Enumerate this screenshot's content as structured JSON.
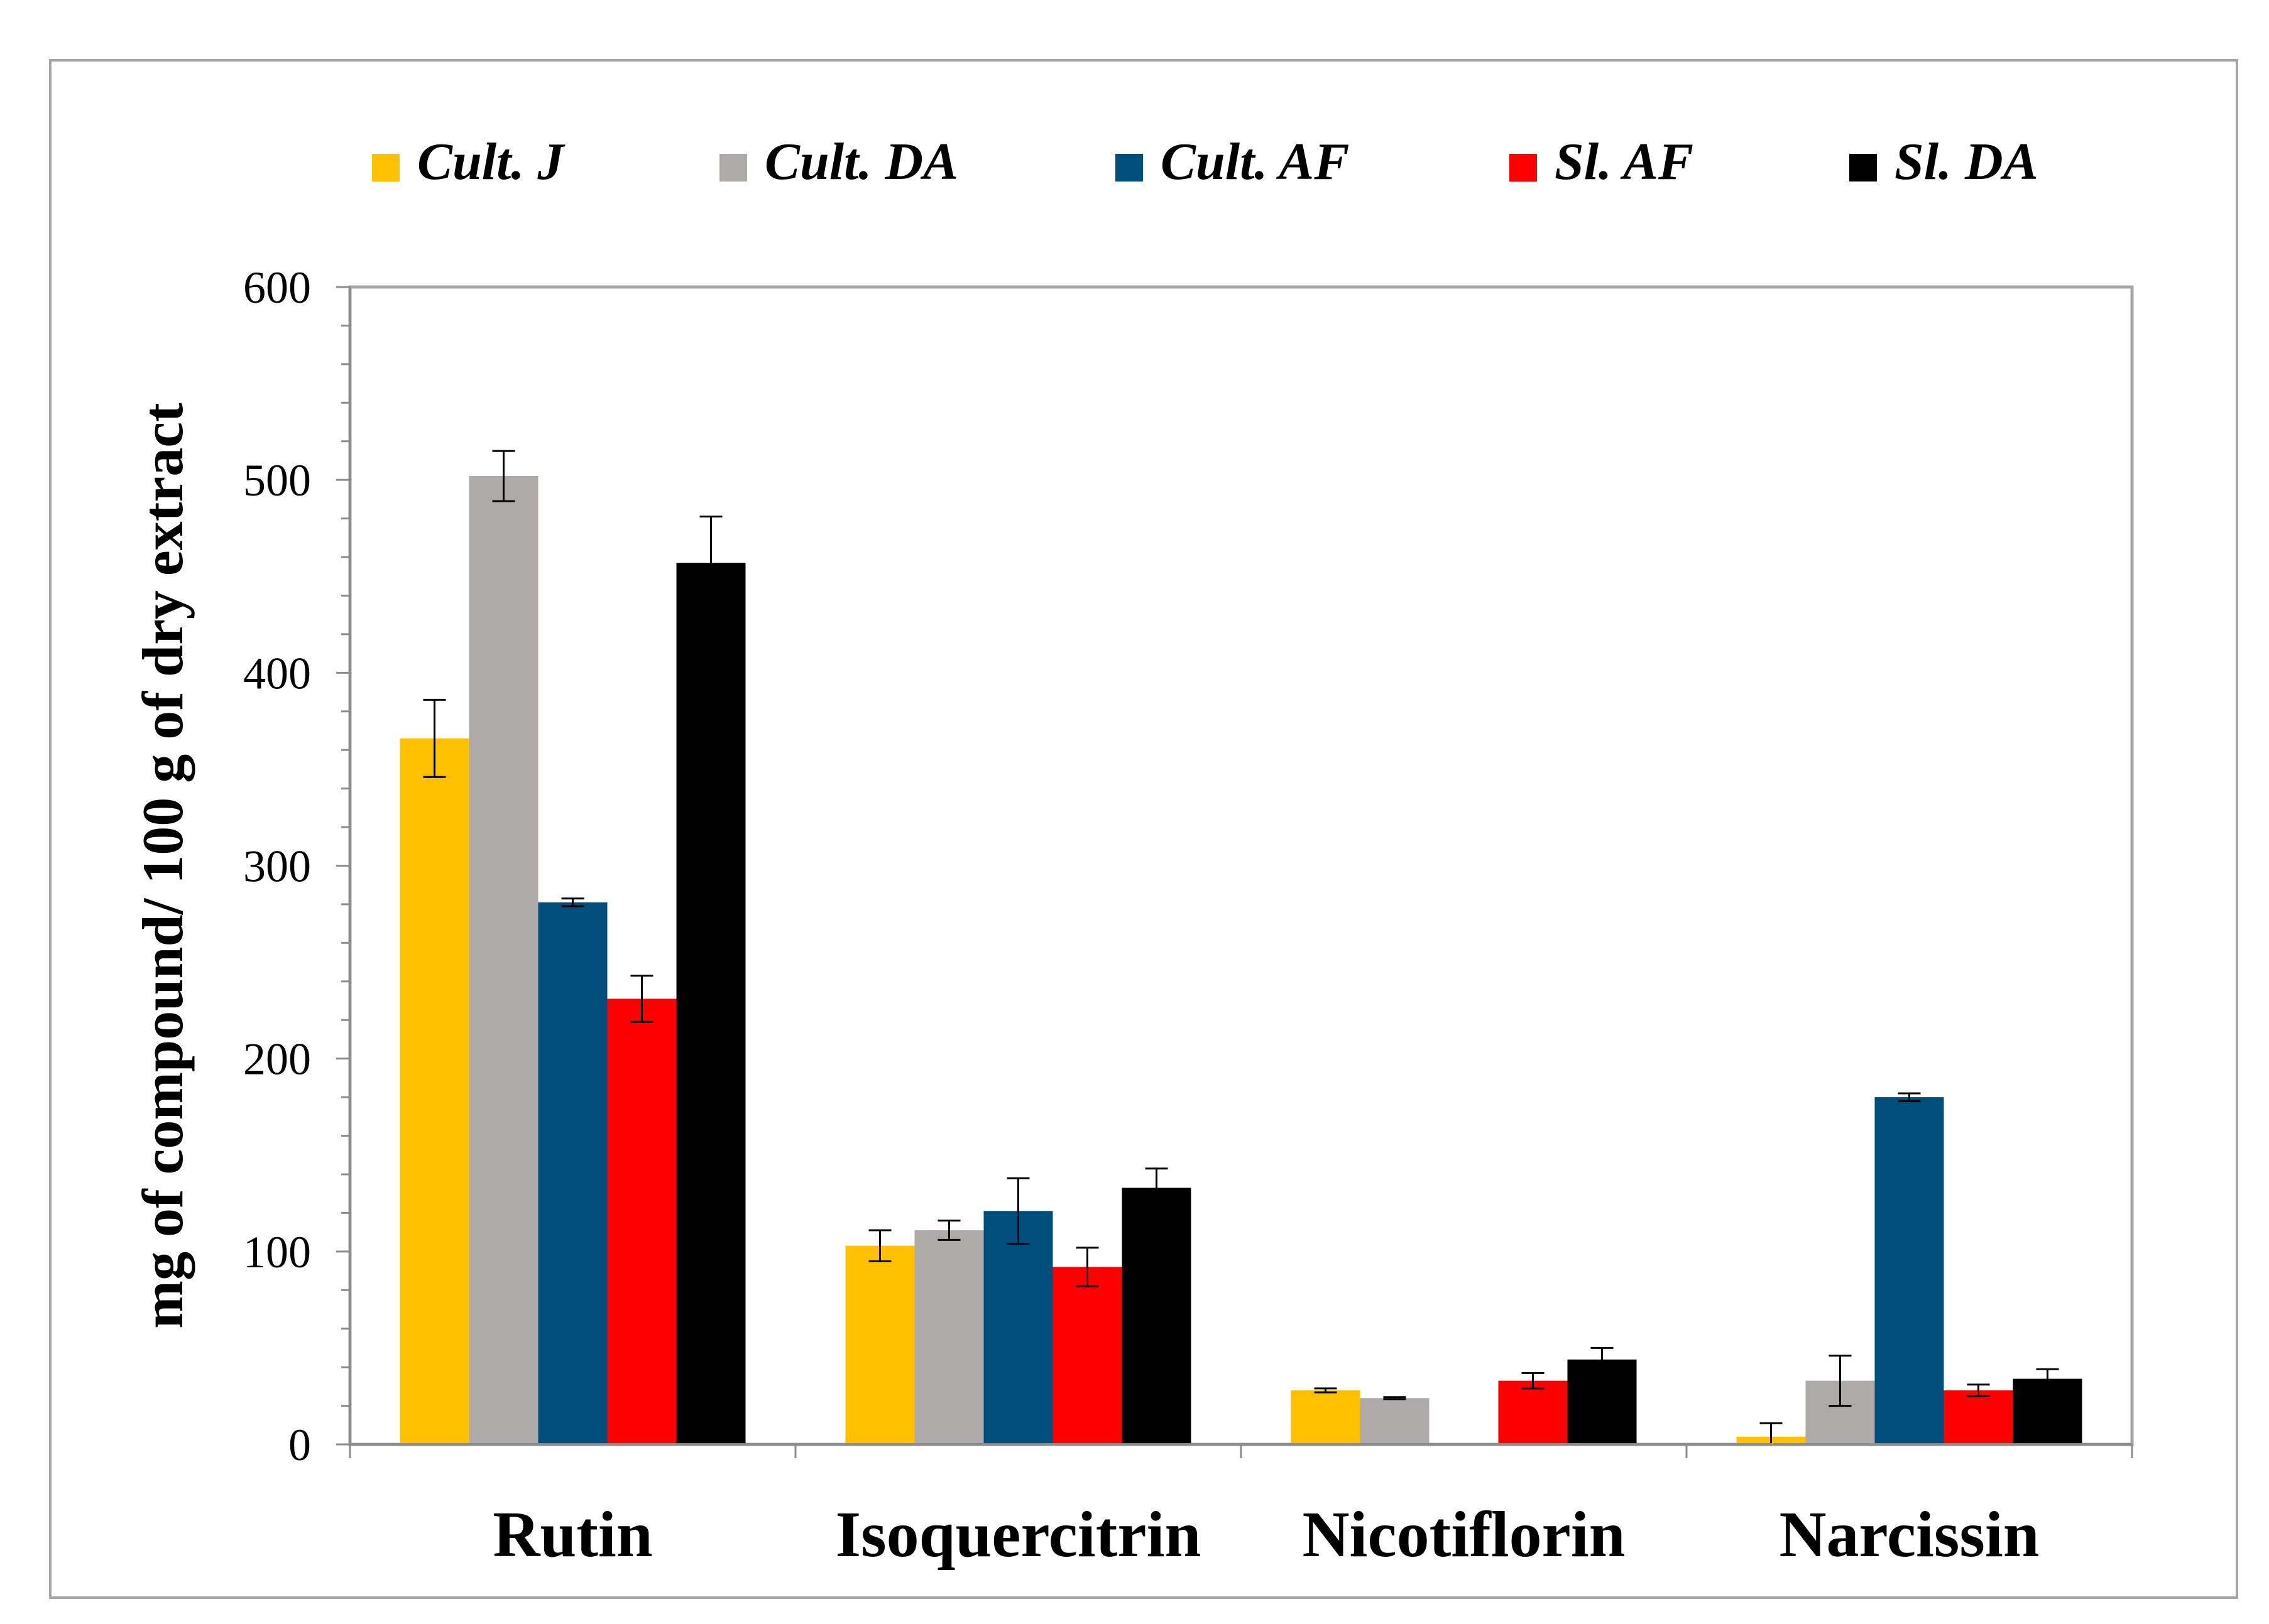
{
  "chart_data": {
    "type": "bar",
    "title": "",
    "xlabel": "",
    "ylabel": "mg of compound/ 100 g of dry extract",
    "ylim": [
      0,
      600
    ],
    "yticks": [
      0,
      100,
      200,
      300,
      400,
      500,
      600
    ],
    "legend_position": "top",
    "categories": [
      "Rutin",
      "Isoquercitrin",
      "Nicotiflorin",
      "Narcissin"
    ],
    "series": [
      {
        "name": "Cult. J",
        "color": "#ffc000",
        "values": [
          366,
          103,
          28,
          4
        ],
        "errors": [
          20,
          8,
          1,
          7
        ]
      },
      {
        "name": "Cult. DA",
        "color": "#aeaaaa",
        "values": [
          502,
          111,
          24,
          33
        ],
        "errors": [
          13,
          5,
          0.5,
          13
        ]
      },
      {
        "name": "Cult. AF",
        "color": "#004e7c",
        "values": [
          281,
          121,
          null,
          180
        ],
        "errors": [
          2,
          17,
          null,
          2
        ]
      },
      {
        "name": "Sl. AF",
        "color": "#ff0000",
        "values": [
          231,
          92,
          33,
          28
        ],
        "errors": [
          12,
          10,
          4,
          3
        ]
      },
      {
        "name": "Sl. DA",
        "color": "#000000",
        "values": [
          457,
          133,
          44,
          34
        ],
        "errors": [
          24,
          10,
          6,
          5
        ]
      }
    ]
  }
}
